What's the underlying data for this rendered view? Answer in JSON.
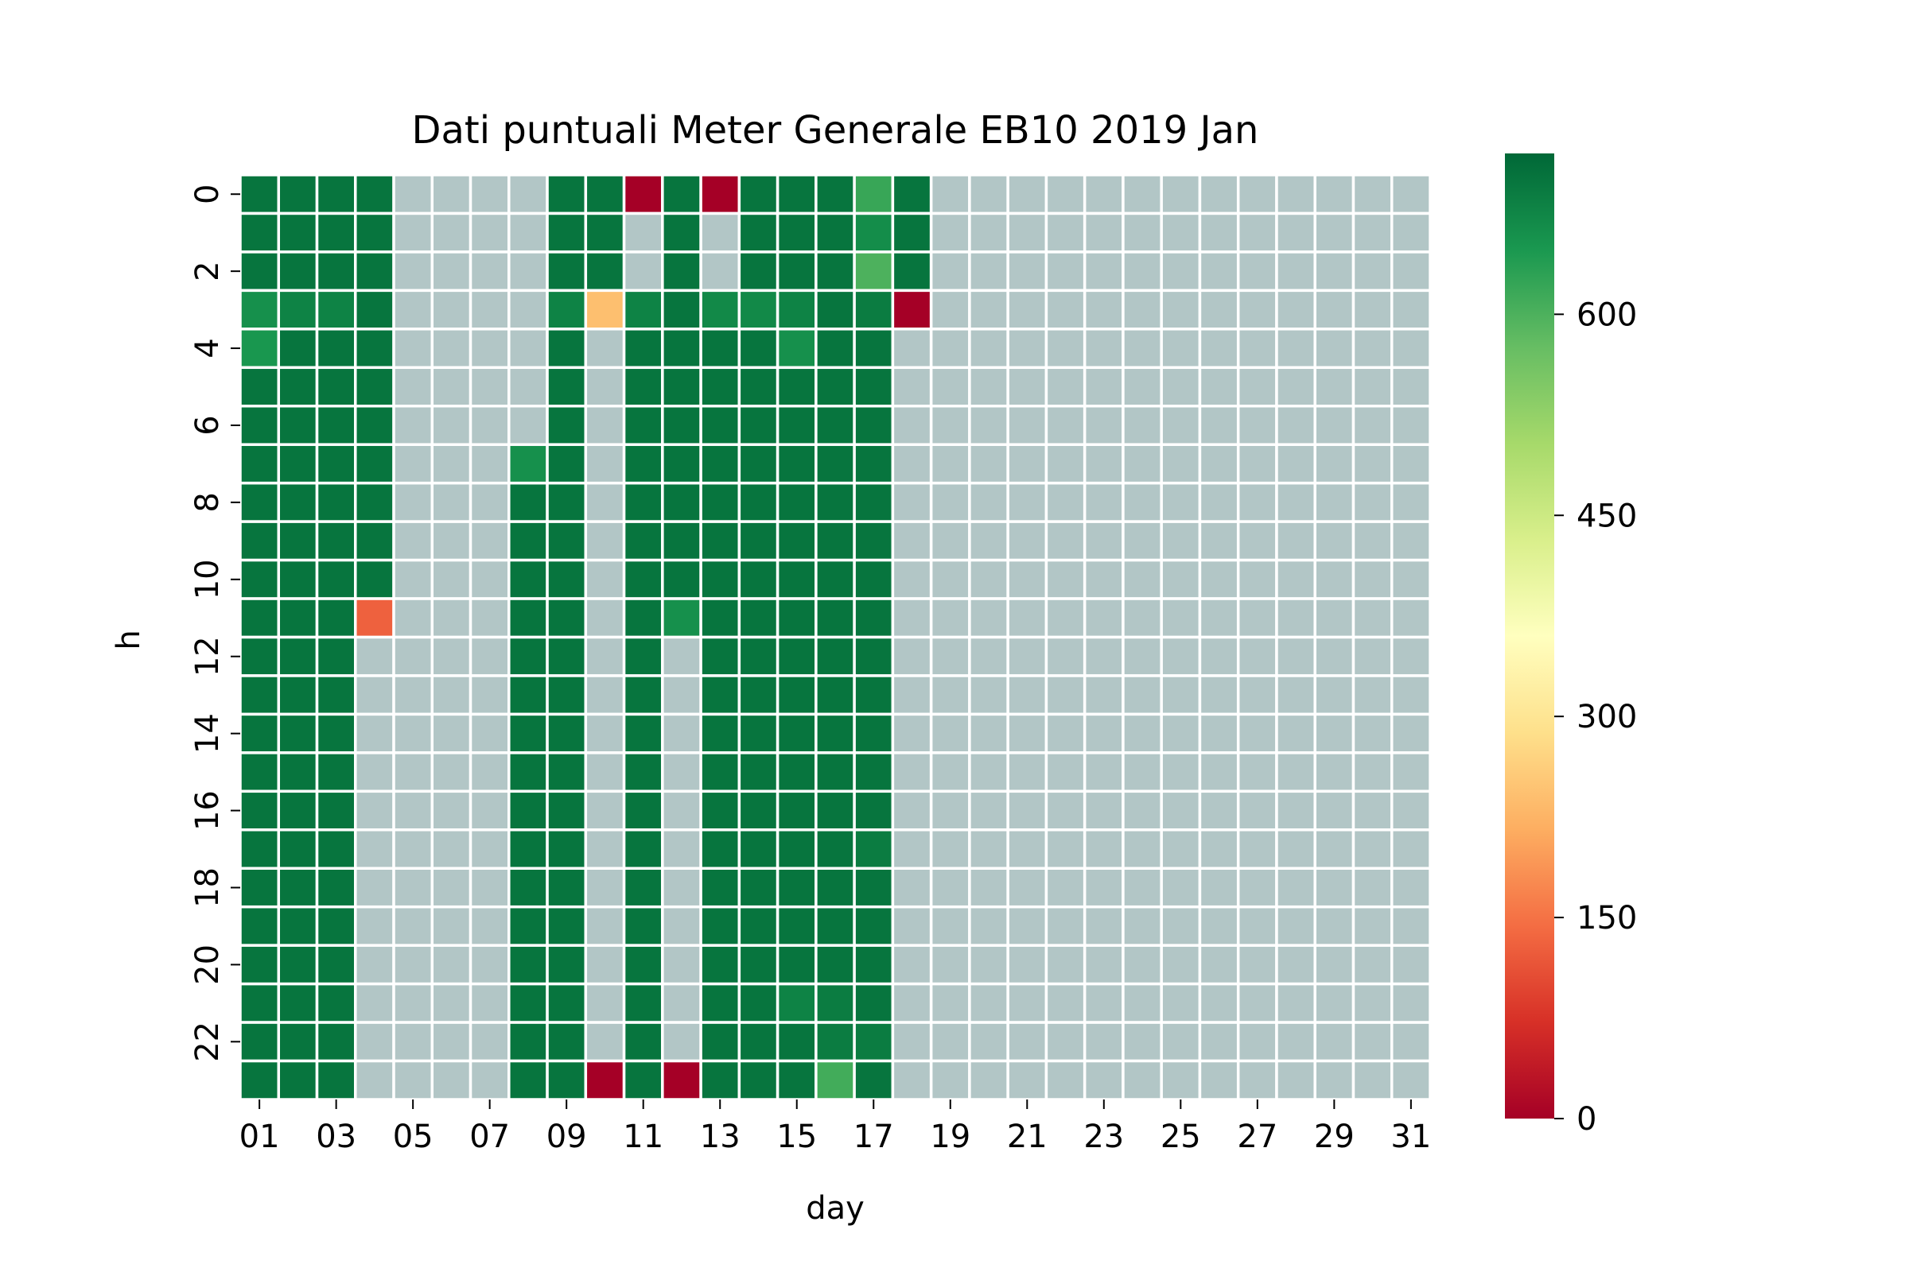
{
  "chart_data": {
    "type": "heatmap",
    "title": "Dati puntuali Meter Generale EB10 2019 Jan",
    "xlabel": "day",
    "ylabel": "h",
    "x_tick_labels": [
      "01",
      "03",
      "05",
      "07",
      "09",
      "11",
      "13",
      "15",
      "17",
      "19",
      "21",
      "23",
      "25",
      "27",
      "29",
      "31"
    ],
    "y_tick_labels": [
      "0",
      "2",
      "4",
      "6",
      "8",
      "10",
      "12",
      "14",
      "16",
      "18",
      "20",
      "22"
    ],
    "colorbar": {
      "range": [
        0,
        720
      ],
      "ticks": [
        0,
        150,
        300,
        450,
        600
      ],
      "tick_labels": [
        "0",
        "150",
        "300",
        "450",
        "600"
      ],
      "colormap": "RdYlGn",
      "stops": [
        "#a50026",
        "#d73027",
        "#f46d43",
        "#fdae61",
        "#fee08b",
        "#ffffbf",
        "#d9ef8b",
        "#a6d96a",
        "#66bd63",
        "#1a9850",
        "#006837"
      ]
    },
    "missing_color": "#b2c6c6",
    "grid_color": "#ffffff",
    "note_days": 31,
    "note_hours": 24,
    "rows_hour_0_to_23_days_1_to_31": [
      [
        700,
        700,
        700,
        700,
        null,
        null,
        null,
        null,
        700,
        700,
        0,
        700,
        0,
        700,
        700,
        700,
        620,
        700,
        null,
        null,
        null,
        null,
        null,
        null,
        null,
        null,
        null,
        null,
        null,
        null,
        null
      ],
      [
        700,
        700,
        700,
        700,
        null,
        null,
        null,
        null,
        700,
        700,
        null,
        700,
        null,
        700,
        700,
        700,
        665,
        700,
        null,
        null,
        null,
        null,
        null,
        null,
        null,
        null,
        null,
        null,
        null,
        null,
        null
      ],
      [
        700,
        700,
        700,
        700,
        null,
        null,
        null,
        null,
        700,
        700,
        null,
        700,
        null,
        700,
        700,
        700,
        600,
        700,
        null,
        null,
        null,
        null,
        null,
        null,
        null,
        null,
        null,
        null,
        null,
        null,
        null
      ],
      [
        660,
        680,
        680,
        700,
        null,
        null,
        null,
        null,
        680,
        240,
        680,
        700,
        670,
        670,
        680,
        700,
        690,
        0,
        null,
        null,
        null,
        null,
        null,
        null,
        null,
        null,
        null,
        null,
        null,
        null,
        null
      ],
      [
        650,
        700,
        700,
        700,
        null,
        null,
        null,
        null,
        700,
        null,
        700,
        700,
        700,
        700,
        660,
        700,
        700,
        null,
        null,
        null,
        null,
        null,
        null,
        null,
        null,
        null,
        null,
        null,
        null,
        null,
        null
      ],
      [
        700,
        700,
        700,
        700,
        null,
        null,
        null,
        null,
        700,
        null,
        700,
        700,
        700,
        700,
        700,
        700,
        700,
        null,
        null,
        null,
        null,
        null,
        null,
        null,
        null,
        null,
        null,
        null,
        null,
        null,
        null
      ],
      [
        700,
        700,
        700,
        700,
        null,
        null,
        null,
        null,
        700,
        null,
        700,
        700,
        700,
        700,
        700,
        700,
        700,
        null,
        null,
        null,
        null,
        null,
        null,
        null,
        null,
        null,
        null,
        null,
        null,
        null,
        null
      ],
      [
        700,
        700,
        700,
        700,
        null,
        null,
        null,
        660,
        700,
        null,
        700,
        700,
        700,
        700,
        700,
        700,
        700,
        null,
        null,
        null,
        null,
        null,
        null,
        null,
        null,
        null,
        null,
        null,
        null,
        null,
        null
      ],
      [
        700,
        700,
        700,
        700,
        null,
        null,
        null,
        700,
        700,
        null,
        700,
        700,
        700,
        700,
        700,
        700,
        700,
        null,
        null,
        null,
        null,
        null,
        null,
        null,
        null,
        null,
        null,
        null,
        null,
        null,
        null
      ],
      [
        700,
        700,
        700,
        700,
        null,
        null,
        null,
        700,
        700,
        null,
        700,
        700,
        700,
        700,
        700,
        700,
        700,
        null,
        null,
        null,
        null,
        null,
        null,
        null,
        null,
        null,
        null,
        null,
        null,
        null,
        null
      ],
      [
        700,
        700,
        700,
        700,
        null,
        null,
        null,
        700,
        700,
        null,
        700,
        700,
        700,
        700,
        700,
        700,
        700,
        null,
        null,
        null,
        null,
        null,
        null,
        null,
        null,
        null,
        null,
        null,
        null,
        null,
        null
      ],
      [
        700,
        700,
        700,
        130,
        null,
        null,
        null,
        700,
        700,
        null,
        700,
        660,
        700,
        700,
        700,
        700,
        700,
        null,
        null,
        null,
        null,
        null,
        null,
        null,
        null,
        null,
        null,
        null,
        null,
        null,
        null
      ],
      [
        700,
        700,
        700,
        null,
        null,
        null,
        null,
        700,
        700,
        null,
        700,
        null,
        700,
        700,
        700,
        700,
        700,
        null,
        null,
        null,
        null,
        null,
        null,
        null,
        null,
        null,
        null,
        null,
        null,
        null,
        null
      ],
      [
        700,
        700,
        700,
        null,
        null,
        null,
        null,
        700,
        700,
        null,
        700,
        null,
        700,
        700,
        700,
        700,
        700,
        null,
        null,
        null,
        null,
        null,
        null,
        null,
        null,
        null,
        null,
        null,
        null,
        null,
        null
      ],
      [
        700,
        700,
        700,
        null,
        null,
        null,
        null,
        700,
        700,
        null,
        700,
        null,
        700,
        700,
        700,
        700,
        700,
        null,
        null,
        null,
        null,
        null,
        null,
        null,
        null,
        null,
        null,
        null,
        null,
        null,
        null
      ],
      [
        700,
        700,
        700,
        null,
        null,
        null,
        null,
        700,
        700,
        null,
        700,
        null,
        700,
        700,
        700,
        700,
        700,
        null,
        null,
        null,
        null,
        null,
        null,
        null,
        null,
        null,
        null,
        null,
        null,
        null,
        null
      ],
      [
        700,
        700,
        700,
        null,
        null,
        null,
        null,
        700,
        700,
        null,
        700,
        null,
        700,
        700,
        700,
        700,
        700,
        null,
        null,
        null,
        null,
        null,
        null,
        null,
        null,
        null,
        null,
        null,
        null,
        null,
        null
      ],
      [
        700,
        700,
        700,
        null,
        null,
        null,
        null,
        700,
        700,
        null,
        700,
        null,
        700,
        700,
        700,
        700,
        690,
        null,
        null,
        null,
        null,
        null,
        null,
        null,
        null,
        null,
        null,
        null,
        null,
        null,
        null
      ],
      [
        700,
        700,
        700,
        null,
        null,
        null,
        null,
        700,
        700,
        null,
        700,
        null,
        700,
        700,
        700,
        700,
        700,
        null,
        null,
        null,
        null,
        null,
        null,
        null,
        null,
        null,
        null,
        null,
        null,
        null,
        null
      ],
      [
        700,
        700,
        700,
        null,
        null,
        null,
        null,
        700,
        700,
        null,
        700,
        null,
        700,
        700,
        700,
        700,
        700,
        null,
        null,
        null,
        null,
        null,
        null,
        null,
        null,
        null,
        null,
        null,
        null,
        null,
        null
      ],
      [
        700,
        700,
        700,
        null,
        null,
        null,
        null,
        700,
        700,
        null,
        700,
        null,
        700,
        700,
        700,
        700,
        700,
        null,
        null,
        null,
        null,
        null,
        null,
        null,
        null,
        null,
        null,
        null,
        null,
        null,
        null
      ],
      [
        700,
        700,
        700,
        null,
        null,
        null,
        null,
        700,
        700,
        null,
        700,
        null,
        700,
        700,
        680,
        690,
        700,
        null,
        null,
        null,
        null,
        null,
        null,
        null,
        null,
        null,
        null,
        null,
        null,
        null,
        null
      ],
      [
        700,
        700,
        700,
        null,
        null,
        null,
        null,
        700,
        700,
        null,
        700,
        null,
        700,
        700,
        700,
        690,
        690,
        null,
        null,
        null,
        null,
        null,
        null,
        null,
        null,
        null,
        null,
        null,
        null,
        null,
        null
      ],
      [
        700,
        700,
        700,
        null,
        null,
        null,
        null,
        700,
        700,
        0,
        700,
        0,
        700,
        700,
        700,
        610,
        700,
        null,
        null,
        null,
        null,
        null,
        null,
        null,
        null,
        null,
        null,
        null,
        null,
        null,
        null
      ]
    ]
  }
}
